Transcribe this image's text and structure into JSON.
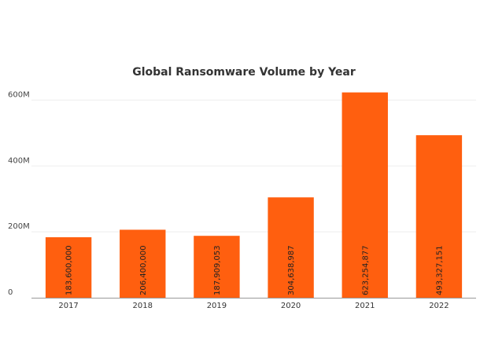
{
  "chart_data": {
    "type": "bar",
    "title": "Global Ransomware Volume by Year",
    "xlabel": "",
    "ylabel": "",
    "categories": [
      "2017",
      "2018",
      "2019",
      "2020",
      "2021",
      "2022"
    ],
    "values": [
      183600000,
      206400000,
      187909053,
      304638987,
      623254877,
      493327151
    ],
    "value_labels": [
      "183,600,000",
      "206,400,000",
      "187,909,053",
      "304,638,987",
      "623,254,877",
      "493,327,151"
    ],
    "ylim": [
      0,
      620000000
    ],
    "y_ticks": [
      {
        "value": 0,
        "label": "0"
      },
      {
        "value": 200000000,
        "label": "200M"
      },
      {
        "value": 400000000,
        "label": "400M"
      },
      {
        "value": 600000000,
        "label": "600M"
      }
    ],
    "bar_color": "#ff5f0f",
    "grid": true,
    "legend": "none"
  }
}
